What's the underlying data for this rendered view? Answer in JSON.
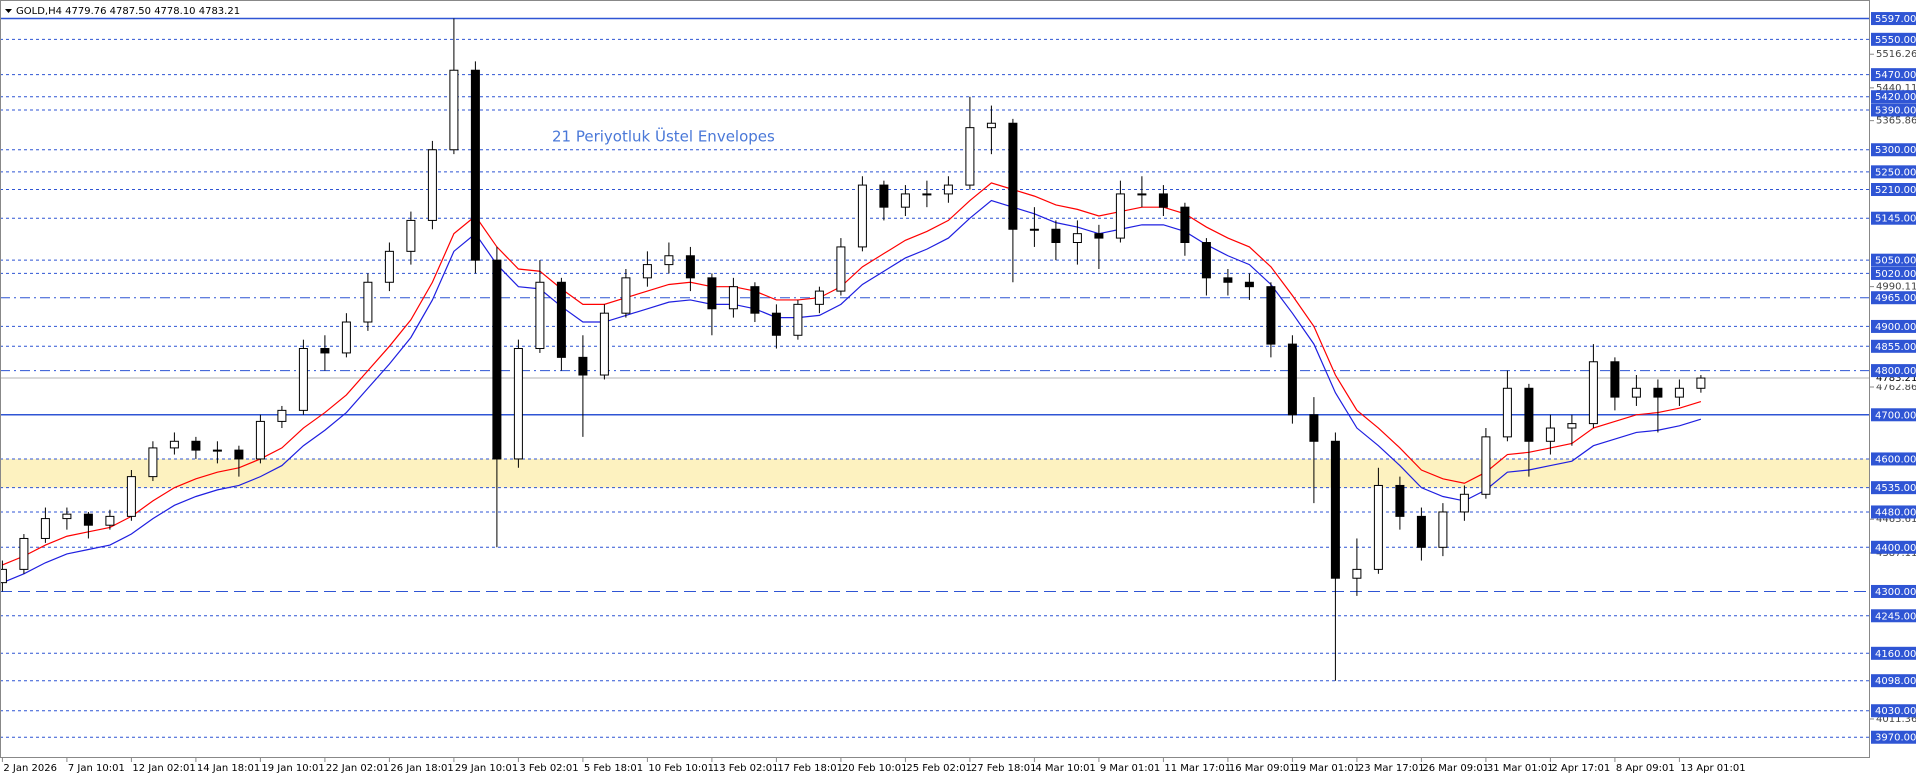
{
  "chart_data": {
    "type": "candlestick",
    "title": "GOLD,H4  4779.76 4787.50 4778.10 4783.21",
    "annotation": "21 Periyotluk Üstel Envelopes",
    "ylim": [
      3923,
      5639
    ],
    "yticks": [
      5516.26,
      5440.11,
      5365.86,
      4990.11,
      4762.86,
      4463.61,
      4387.11,
      4011.36
    ],
    "xticks": [
      {
        "value": 0,
        "label": "2 Jan 2026"
      },
      {
        "value": 3,
        "label": "7 Jan 10:01"
      },
      {
        "value": 6,
        "label": "12 Jan 02:01"
      },
      {
        "value": 9,
        "label": "14 Jan 18:01"
      },
      {
        "value": 12,
        "label": "19 Jan 10:01"
      },
      {
        "value": 15,
        "label": "22 Jan 02:01"
      },
      {
        "value": 18,
        "label": "26 Jan 18:01"
      },
      {
        "value": 21,
        "label": "29 Jan 10:01"
      },
      {
        "value": 24,
        "label": "3 Feb 02:01"
      },
      {
        "value": 27,
        "label": "5 Feb 18:01"
      },
      {
        "value": 30,
        "label": "10 Feb 10:01"
      },
      {
        "value": 33,
        "label": "13 Feb 02:01"
      },
      {
        "value": 36,
        "label": "17 Feb 18:01"
      },
      {
        "value": 39,
        "label": "20 Feb 10:01"
      },
      {
        "value": 42,
        "label": "25 Feb 02:01"
      },
      {
        "value": 45,
        "label": "27 Feb 18:01"
      },
      {
        "value": 48,
        "label": "4 Mar 10:01"
      },
      {
        "value": 51,
        "label": "9 Mar 01:01"
      },
      {
        "value": 54,
        "label": "11 Mar 17:01"
      },
      {
        "value": 57,
        "label": "16 Mar 09:01"
      },
      {
        "value": 60,
        "label": "19 Mar 01:01"
      },
      {
        "value": 63,
        "label": "23 Mar 17:01"
      },
      {
        "value": 66,
        "label": "26 Mar 09:01"
      },
      {
        "value": 69,
        "label": "31 Mar 01:01"
      },
      {
        "value": 72,
        "label": "2 Apr 17:01"
      },
      {
        "value": 75,
        "label": "8 Apr 09:01"
      },
      {
        "value": 78,
        "label": "13 Apr 01:01"
      }
    ],
    "ohlc": [
      [
        4320,
        4370,
        4300,
        4350
      ],
      [
        4350,
        4430,
        4340,
        4420
      ],
      [
        4420,
        4490,
        4410,
        4465
      ],
      [
        4465,
        4490,
        4440,
        4475
      ],
      [
        4475,
        4480,
        4420,
        4450
      ],
      [
        4450,
        4485,
        4440,
        4470
      ],
      [
        4470,
        4575,
        4460,
        4560
      ],
      [
        4560,
        4640,
        4550,
        4625
      ],
      [
        4625,
        4660,
        4610,
        4640
      ],
      [
        4640,
        4650,
        4600,
        4620
      ],
      [
        4620,
        4640,
        4590,
        4620
      ],
      [
        4620,
        4630,
        4560,
        4600
      ],
      [
        4600,
        4700,
        4590,
        4685
      ],
      [
        4685,
        4720,
        4670,
        4710
      ],
      [
        4710,
        4870,
        4700,
        4850
      ],
      [
        4850,
        4880,
        4800,
        4840
      ],
      [
        4840,
        4930,
        4830,
        4910
      ],
      [
        4910,
        5020,
        4890,
        5000
      ],
      [
        5000,
        5090,
        4980,
        5070
      ],
      [
        5070,
        5160,
        5040,
        5140
      ],
      [
        5140,
        5320,
        5120,
        5300
      ],
      [
        5300,
        5597,
        5290,
        5480
      ],
      [
        5480,
        5500,
        5020,
        5050
      ],
      [
        5050,
        5080,
        4400,
        4600
      ],
      [
        4600,
        4870,
        4580,
        4850
      ],
      [
        4850,
        5050,
        4840,
        5000
      ],
      [
        5000,
        5010,
        4800,
        4830
      ],
      [
        4830,
        4880,
        4650,
        4790
      ],
      [
        4790,
        4950,
        4780,
        4930
      ],
      [
        4930,
        5030,
        4920,
        5010
      ],
      [
        5010,
        5070,
        4990,
        5040
      ],
      [
        5040,
        5090,
        5020,
        5060
      ],
      [
        5060,
        5080,
        4980,
        5010
      ],
      [
        5010,
        5020,
        4880,
        4940
      ],
      [
        4940,
        5010,
        4920,
        4990
      ],
      [
        4990,
        5000,
        4910,
        4930
      ],
      [
        4930,
        4950,
        4850,
        4880
      ],
      [
        4880,
        4960,
        4870,
        4950
      ],
      [
        4950,
        4990,
        4930,
        4980
      ],
      [
        4980,
        5100,
        4970,
        5080
      ],
      [
        5080,
        5240,
        5070,
        5220
      ],
      [
        5220,
        5230,
        5140,
        5170
      ],
      [
        5170,
        5220,
        5150,
        5200
      ],
      [
        5200,
        5230,
        5170,
        5200
      ],
      [
        5200,
        5240,
        5180,
        5220
      ],
      [
        5220,
        5420,
        5210,
        5350
      ],
      [
        5350,
        5400,
        5290,
        5360
      ],
      [
        5360,
        5370,
        5000,
        5120
      ],
      [
        5120,
        5170,
        5080,
        5120
      ],
      [
        5120,
        5140,
        5050,
        5090
      ],
      [
        5090,
        5140,
        5040,
        5110
      ],
      [
        5110,
        5130,
        5030,
        5100
      ],
      [
        5100,
        5230,
        5090,
        5200
      ],
      [
        5200,
        5240,
        5170,
        5200
      ],
      [
        5200,
        5220,
        5150,
        5170
      ],
      [
        5170,
        5180,
        5060,
        5090
      ],
      [
        5090,
        5100,
        4970,
        5010
      ],
      [
        5010,
        5030,
        4970,
        5000
      ],
      [
        5000,
        5020,
        4960,
        4990
      ],
      [
        4990,
        5000,
        4830,
        4860
      ],
      [
        4860,
        4880,
        4680,
        4700
      ],
      [
        4700,
        4740,
        4500,
        4640
      ],
      [
        4640,
        4660,
        4098,
        4330
      ],
      [
        4330,
        4420,
        4290,
        4350
      ],
      [
        4350,
        4580,
        4340,
        4540
      ],
      [
        4540,
        4560,
        4440,
        4470
      ],
      [
        4470,
        4490,
        4370,
        4400
      ],
      [
        4400,
        4500,
        4380,
        4480
      ],
      [
        4480,
        4540,
        4460,
        4520
      ],
      [
        4520,
        4670,
        4510,
        4650
      ],
      [
        4650,
        4800,
        4640,
        4760
      ],
      [
        4760,
        4770,
        4560,
        4640
      ],
      [
        4640,
        4700,
        4610,
        4670
      ],
      [
        4670,
        4700,
        4630,
        4680
      ],
      [
        4680,
        4860,
        4670,
        4820
      ],
      [
        4820,
        4830,
        4710,
        4740
      ],
      [
        4740,
        4790,
        4720,
        4760
      ],
      [
        4760,
        4780,
        4660,
        4740
      ],
      [
        4740,
        4780,
        4720,
        4760
      ],
      [
        4760,
        4790,
        4750,
        4783.21
      ]
    ],
    "bull_color": "#ffffff",
    "bear_color": "#000000",
    "series": [
      {
        "color": "#ff0000",
        "values": [
          4360,
          4380,
          4405,
          4425,
          4435,
          4445,
          4470,
          4505,
          4535,
          4555,
          4570,
          4580,
          4600,
          4625,
          4670,
          4705,
          4745,
          4800,
          4855,
          4915,
          5000,
          5110,
          5150,
          5080,
          5030,
          5025,
          4985,
          4950,
          4950,
          4965,
          4980,
          4995,
          5000,
          4990,
          4990,
          4980,
          4960,
          4960,
          4965,
          4990,
          5035,
          5065,
          5095,
          5115,
          5140,
          5185,
          5225,
          5210,
          5195,
          5175,
          5165,
          5150,
          5160,
          5170,
          5170,
          5155,
          5125,
          5100,
          5080,
          5035,
          4970,
          4900,
          4790,
          4710,
          4670,
          4625,
          4575,
          4555,
          4545,
          4570,
          4610,
          4615,
          4625,
          4635,
          4670,
          4685,
          4700,
          4705,
          4715,
          4730
        ]
      },
      {
        "color": "#1f1fe0",
        "values": [
          4320,
          4340,
          4365,
          4385,
          4395,
          4405,
          4430,
          4465,
          4495,
          4515,
          4530,
          4540,
          4560,
          4585,
          4630,
          4665,
          4705,
          4760,
          4815,
          4875,
          4960,
          5070,
          5110,
          5040,
          4990,
          4985,
          4945,
          4910,
          4910,
          4925,
          4940,
          4955,
          4960,
          4950,
          4950,
          4940,
          4920,
          4920,
          4925,
          4950,
          4995,
          5025,
          5055,
          5075,
          5100,
          5145,
          5185,
          5170,
          5155,
          5135,
          5125,
          5110,
          5120,
          5130,
          5130,
          5115,
          5085,
          5060,
          5040,
          4995,
          4930,
          4860,
          4750,
          4670,
          4630,
          4585,
          4535,
          4515,
          4505,
          4530,
          4570,
          4575,
          4585,
          4595,
          4630,
          4645,
          4660,
          4665,
          4675,
          4690
        ]
      }
    ],
    "zone": {
      "from": 4535,
      "to": 4600,
      "color": "#fdf2c0"
    },
    "level_color": "#2f55d4",
    "levels": [
      {
        "value": 5597,
        "label": "5597.00",
        "style": "solid"
      },
      {
        "value": 5550,
        "label": "5550.00",
        "style": "dash"
      },
      {
        "value": 5470,
        "label": "5470.00",
        "style": "dash"
      },
      {
        "value": 5420,
        "label": "5420.00",
        "style": "dash"
      },
      {
        "value": 5390,
        "label": "5390.00",
        "style": "dash"
      },
      {
        "value": 5300,
        "label": "5300.00",
        "style": "dash"
      },
      {
        "value": 5250,
        "label": "5250.00",
        "style": "dash"
      },
      {
        "value": 5210,
        "label": "5210.00",
        "style": "dash"
      },
      {
        "value": 5145,
        "label": "5145.00",
        "style": "dash"
      },
      {
        "value": 5050,
        "label": "5050.00",
        "style": "dash"
      },
      {
        "value": 5020,
        "label": "5020.00",
        "style": "dash"
      },
      {
        "value": 4965,
        "label": "4965.00",
        "style": "dashdot"
      },
      {
        "value": 4900,
        "label": "4900.00",
        "style": "dash"
      },
      {
        "value": 4855,
        "label": "4855.00",
        "style": "dash"
      },
      {
        "value": 4800,
        "label": "4800.00",
        "style": "dashdot"
      },
      {
        "value": 4700,
        "label": "4700.00",
        "style": "solid"
      },
      {
        "value": 4600,
        "label": "4600.00",
        "style": "dash"
      },
      {
        "value": 4535,
        "label": "4535.00",
        "style": "dash"
      },
      {
        "value": 4480,
        "label": "4480.00",
        "style": "dash"
      },
      {
        "value": 4400,
        "label": "4400.00",
        "style": "dash"
      },
      {
        "value": 4300,
        "label": "4300.00",
        "style": "longdash"
      },
      {
        "value": 4245,
        "label": "4245.00",
        "style": "dash"
      },
      {
        "value": 4160,
        "label": "4160.00",
        "style": "dash"
      },
      {
        "value": 4098,
        "label": "4098.00",
        "style": "dash"
      },
      {
        "value": 4030,
        "label": "4030.00",
        "style": "dash"
      },
      {
        "value": 3970,
        "label": "3970.00",
        "style": "dash"
      }
    ],
    "last_price": 4783.21
  }
}
